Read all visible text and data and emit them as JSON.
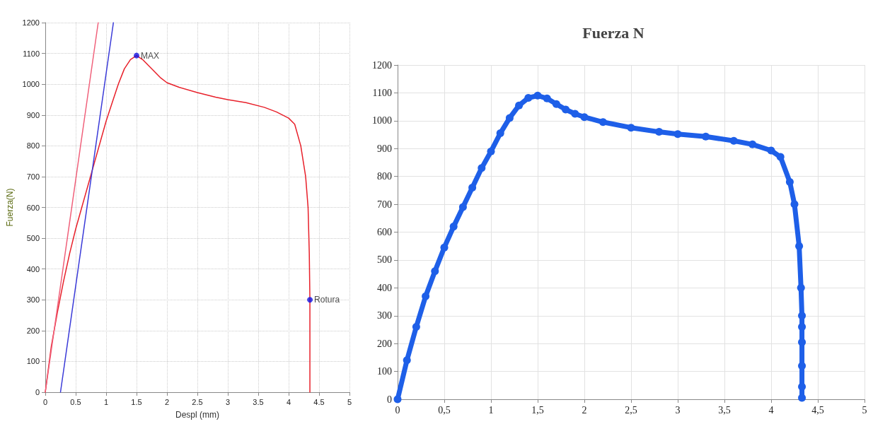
{
  "chart_data": [
    {
      "type": "line",
      "xlabel": "Despl (mm)",
      "ylabel": "Fuerza(N)",
      "xlim": [
        0,
        5
      ],
      "xticks": [
        0,
        0.5,
        1,
        1.5,
        2,
        2.5,
        3,
        3.5,
        4,
        4.5,
        5
      ],
      "ylim": [
        0,
        1200
      ],
      "yticks": [
        0,
        100,
        200,
        300,
        400,
        500,
        600,
        700,
        800,
        900,
        1000,
        1100,
        1200
      ],
      "grid": true,
      "marker": "none",
      "series": [
        {
          "color": "#e8202a",
          "x": [
            0,
            0.1,
            0.2,
            0.3,
            0.4,
            0.5,
            0.6,
            0.7,
            0.8,
            0.9,
            1.0,
            1.1,
            1.2,
            1.3,
            1.4,
            1.5,
            1.6,
            1.7,
            1.8,
            1.9,
            2.0,
            2.2,
            2.5,
            2.8,
            3.0,
            3.3,
            3.6,
            3.8,
            4.0,
            4.1,
            4.2,
            4.28,
            4.32,
            4.34,
            4.35,
            4.35
          ],
          "values": [
            0,
            150,
            260,
            360,
            450,
            530,
            600,
            670,
            740,
            810,
            880,
            940,
            1000,
            1050,
            1080,
            1093,
            1080,
            1060,
            1040,
            1020,
            1005,
            990,
            973,
            958,
            950,
            940,
            925,
            910,
            890,
            870,
            800,
            700,
            600,
            450,
            300,
            0
          ]
        },
        {
          "color": "#f0607a",
          "x": [
            0,
            0.87
          ],
          "values": [
            0,
            1200
          ]
        },
        {
          "color": "#3a3ad8",
          "x": [
            0.25,
            1.12
          ],
          "values": [
            0,
            1200
          ]
        },
        {
          "type": "scatter",
          "marker": "circle",
          "color": "#1010e0",
          "x": [
            1.5,
            4.35
          ],
          "values": [
            1093,
            300
          ],
          "value_labels": [
            "MAX",
            "Rotura"
          ]
        }
      ]
    },
    {
      "type": "line",
      "title": "Fuerza N",
      "xlim": [
        0,
        5
      ],
      "xticks": [
        0,
        {
          "value": 0.5,
          "label": "0,5"
        },
        1,
        {
          "value": 1.5,
          "label": "1,5"
        },
        2,
        {
          "value": 2.5,
          "label": "2,5"
        },
        3,
        {
          "value": 3.5,
          "label": "3,5"
        },
        4,
        {
          "value": 4.5,
          "label": "4,5"
        },
        5
      ],
      "ylim": [
        0,
        1200
      ],
      "yticks": [
        0,
        100,
        200,
        300,
        400,
        500,
        600,
        700,
        800,
        900,
        1000,
        1100,
        1200
      ],
      "grid": true,
      "marker": "circle",
      "series": [
        {
          "color": "#1e5fe8",
          "x": [
            0,
            0.1,
            0.2,
            0.3,
            0.4,
            0.5,
            0.6,
            0.7,
            0.8,
            0.9,
            1.0,
            1.1,
            1.2,
            1.3,
            1.4,
            1.5,
            1.6,
            1.7,
            1.8,
            1.9,
            2.0,
            2.2,
            2.5,
            2.8,
            3.0,
            3.3,
            3.6,
            3.8,
            4.0,
            4.1,
            4.2,
            4.25,
            4.3,
            4.32,
            4.33,
            4.33,
            4.33,
            4.33,
            4.33,
            4.33
          ],
          "values": [
            0,
            140,
            260,
            370,
            460,
            545,
            620,
            690,
            760,
            830,
            890,
            955,
            1010,
            1055,
            1082,
            1090,
            1080,
            1060,
            1040,
            1025,
            1013,
            995,
            975,
            960,
            952,
            943,
            928,
            915,
            893,
            870,
            780,
            700,
            550,
            400,
            300,
            260,
            205,
            120,
            45,
            5
          ]
        }
      ]
    }
  ]
}
